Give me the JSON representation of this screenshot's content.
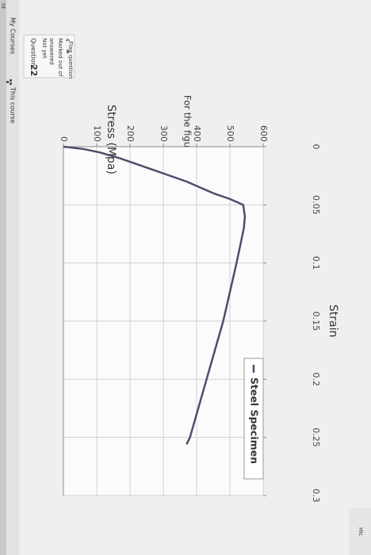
{
  "header": {
    "corner": "nt",
    "nav_courses": "My Courses",
    "nav_course": "This course",
    "right_corner": "Hic"
  },
  "sidebar": {
    "question_label": "Question",
    "number": "22",
    "status": [
      "Not yet",
      "answered"
    ],
    "marks": [
      "Marked out of",
      "4"
    ],
    "flag": "Flag question"
  },
  "question": {
    "text": "For the figure below, the fracture stress is equals to:"
  },
  "chart_data": {
    "type": "line",
    "y_label": "Stress (Mpa)",
    "x_label": "Strain",
    "x": [
      0,
      0.002,
      0.005,
      0.01,
      0.02,
      0.03,
      0.04,
      0.045,
      0.05,
      0.06,
      0.07,
      0.1,
      0.15,
      0.2,
      0.25,
      0.256
    ],
    "series": [
      {
        "name": "Steel Specimen",
        "color": "#4b4f6b",
        "values": [
          0,
          60,
          110,
          170,
          270,
          370,
          450,
          500,
          540,
          545,
          542,
          520,
          480,
          430,
          380,
          370
        ]
      }
    ],
    "xlim": [
      0,
      0.3
    ],
    "xticks": [
      0,
      0.05,
      0.1,
      0.15,
      0.2,
      0.25,
      0.3
    ],
    "ylim": [
      0,
      600
    ],
    "yticks": [
      0,
      100,
      200,
      300,
      400,
      500,
      600
    ],
    "grid": true
  }
}
